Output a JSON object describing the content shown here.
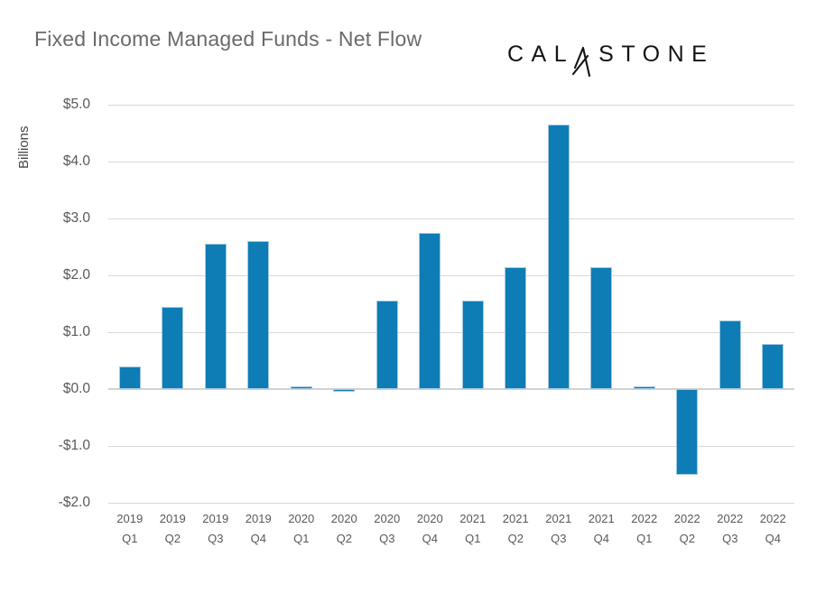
{
  "header": {
    "title": "Fixed Income Managed Funds - Net Flow",
    "logo": {
      "name": "CALASTONE",
      "left": "CAL",
      "right": "STONE"
    }
  },
  "chart_data": {
    "type": "bar",
    "title": "Fixed Income Managed Funds - Net Flow",
    "xlabel": "",
    "ylabel": "Billions",
    "ylim": [
      -2.0,
      5.0
    ],
    "y_tick_step": 1.0,
    "y_ticks": [
      "$5.0",
      "$4.0",
      "$3.0",
      "$2.0",
      "$1.0",
      "$0.0",
      "-$1.0",
      "-$2.0"
    ],
    "grid": true,
    "legend": false,
    "categories": [
      "2019 Q1",
      "2019 Q2",
      "2019 Q3",
      "2019 Q4",
      "2020 Q1",
      "2020 Q2",
      "2020 Q3",
      "2020 Q4",
      "2021 Q1",
      "2021 Q2",
      "2021 Q3",
      "2021 Q4",
      "2022 Q1",
      "2022 Q2",
      "2022 Q3",
      "2022 Q4"
    ],
    "values": [
      0.4,
      1.45,
      2.55,
      2.6,
      0.05,
      -0.05,
      1.55,
      2.75,
      1.55,
      2.15,
      4.65,
      2.15,
      0.05,
      -1.5,
      1.2,
      0.8
    ],
    "colors": {
      "bar_fill": "#0e7cb5",
      "bar_border": "#a3c9e2",
      "gridline": "#d9d9d9",
      "zero_line": "#d2d2d2",
      "title_text": "#6a6a6a",
      "axis_text": "#595959",
      "logo_text": "#141414"
    }
  }
}
